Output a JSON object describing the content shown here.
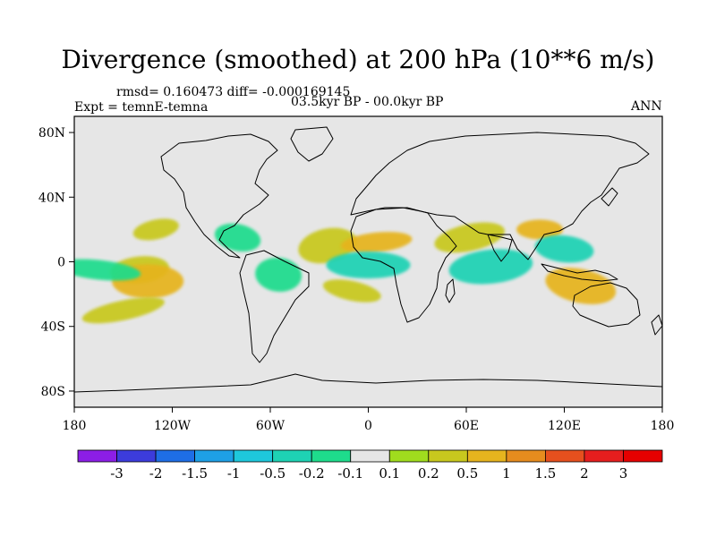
{
  "title": "Divergence (smoothed) at 200 hPa (10**6 m/s)",
  "stats": "rmsd= 0.160473 diff= -0.000169145",
  "experiment": "Expt = temnE-temna",
  "period": "03.5kyr BP - 00.0kyr BP",
  "season": "ANN",
  "chart_data": {
    "type": "heatmap",
    "title": "Divergence (smoothed) at 200 hPa (10**6 m/s)",
    "projection": "cylindrical equidistant",
    "x_range": [
      -180,
      180
    ],
    "y_range": [
      -90,
      90
    ],
    "x_ticks": [
      {
        "value": -180,
        "label": "180"
      },
      {
        "value": -120,
        "label": "120W"
      },
      {
        "value": -60,
        "label": "60W"
      },
      {
        "value": 0,
        "label": "0"
      },
      {
        "value": 60,
        "label": "60E"
      },
      {
        "value": 120,
        "label": "120E"
      },
      {
        "value": 180,
        "label": "180"
      }
    ],
    "y_ticks": [
      {
        "value": 80,
        "label": "80N"
      },
      {
        "value": 40,
        "label": "40N"
      },
      {
        "value": 0,
        "label": "0"
      },
      {
        "value": -40,
        "label": "40S"
      },
      {
        "value": -80,
        "label": "80S"
      }
    ],
    "colorbar": {
      "levels": [
        "-3",
        "-2",
        "-1.5",
        "-1",
        "-0.5",
        "-0.2",
        "-0.1",
        "0.1",
        "0.2",
        "0.5",
        "1",
        "1.5",
        "2",
        "3"
      ],
      "colors": [
        "#8c1ee6",
        "#3c3cdc",
        "#1e6ee6",
        "#1ea0e6",
        "#1ec8dc",
        "#1ed2b4",
        "#1edc8c",
        "#e6e6e6",
        "#a0dc1e",
        "#c8c81e",
        "#e6b41e",
        "#e68c1e",
        "#e6501e",
        "#e61e1e",
        "#e60000"
      ]
    },
    "features": [
      {
        "name": "North Pacific positive band",
        "lon": -130,
        "lat": 20,
        "value": 0.2
      },
      {
        "name": "Tropical east Pacific positive",
        "lon": -140,
        "lat": -5,
        "value": 0.2
      },
      {
        "name": "South Pacific positive band",
        "lon": -135,
        "lat": -12,
        "value": 0.5
      },
      {
        "name": "Equatorial Pacific negative",
        "lon": -165,
        "lat": -5,
        "value": -0.2
      },
      {
        "name": "Caribbean negative",
        "lon": -80,
        "lat": 15,
        "value": -0.2
      },
      {
        "name": "Tropical Atlantic positive",
        "lon": -25,
        "lat": 10,
        "value": 0.2
      },
      {
        "name": "Sahel positive",
        "lon": 5,
        "lat": 12,
        "value": 0.5
      },
      {
        "name": "Gulf of Guinea negative",
        "lon": 0,
        "lat": -2,
        "value": -0.5
      },
      {
        "name": "South America negative",
        "lon": -55,
        "lat": -8,
        "value": -0.2
      },
      {
        "name": "South Atlantic positive",
        "lon": -10,
        "lat": -18,
        "value": 0.2
      },
      {
        "name": "Arabian Sea positive",
        "lon": 62,
        "lat": 15,
        "value": 0.2
      },
      {
        "name": "Indian Ocean negative",
        "lon": 75,
        "lat": -3,
        "value": -0.5
      },
      {
        "name": "Southeast Asia positive",
        "lon": 105,
        "lat": 20,
        "value": 0.5
      },
      {
        "name": "Maritime Continent negative",
        "lon": 120,
        "lat": 8,
        "value": -0.5
      },
      {
        "name": "Australia positive",
        "lon": 130,
        "lat": -15,
        "value": 0.5
      },
      {
        "name": "Southern Ocean positive",
        "lon": -150,
        "lat": -30,
        "value": 0.2
      }
    ]
  }
}
